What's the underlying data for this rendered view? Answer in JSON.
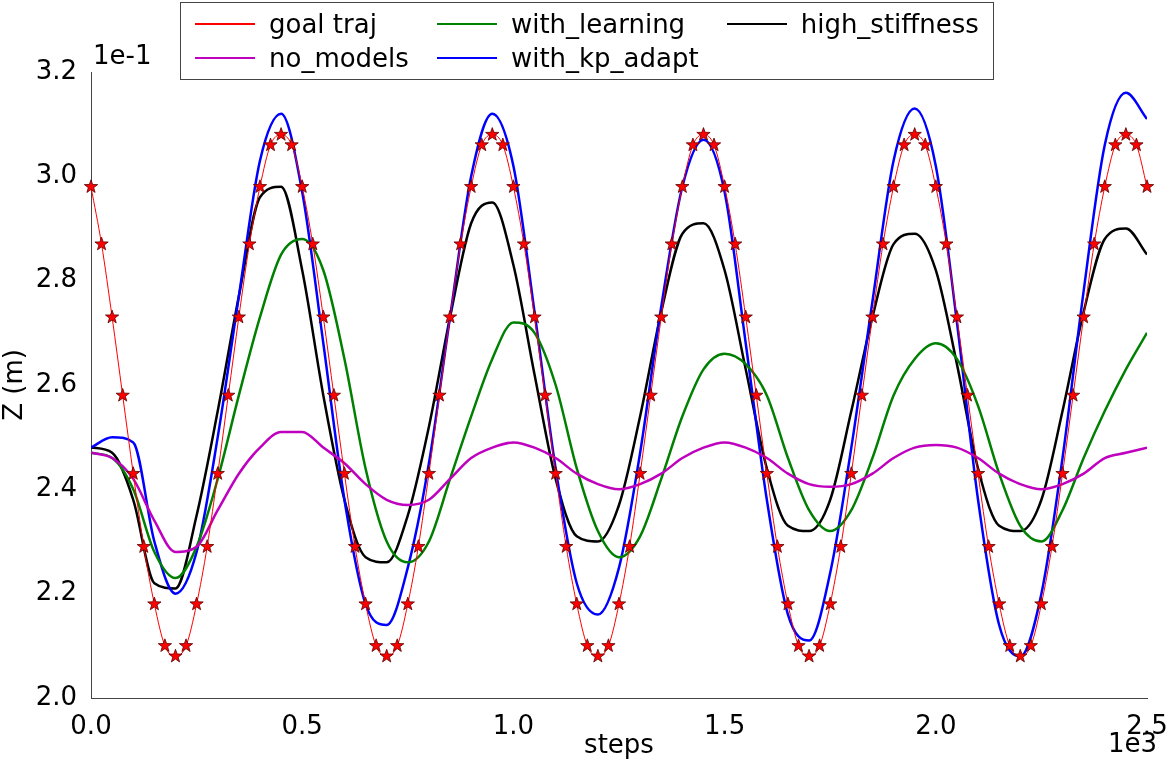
{
  "chart_data": {
    "type": "line",
    "xlabel": "steps",
    "ylabel": "Z (m)",
    "xlim": [
      0,
      2.5
    ],
    "ylim": [
      2.0,
      3.2
    ],
    "xticks": [
      {
        "value": 0,
        "label": "0.0"
      },
      {
        "value": 0.5,
        "label": "0.5"
      },
      {
        "value": 1,
        "label": "1.0"
      },
      {
        "value": 1.5,
        "label": "1.5"
      },
      {
        "value": 2,
        "label": "2.0"
      },
      {
        "value": 2.5,
        "label": "2.5"
      }
    ],
    "yticks": [
      {
        "value": 2.0,
        "label": "2.0"
      },
      {
        "value": 2.2,
        "label": "2.2"
      },
      {
        "value": 2.4,
        "label": "2.4"
      },
      {
        "value": 2.6,
        "label": "2.6"
      },
      {
        "value": 2.8,
        "label": "2.8"
      },
      {
        "value": 3.0,
        "label": "3.0"
      },
      {
        "value": 3.2,
        "label": "3.2"
      }
    ],
    "grid": false,
    "legend": "top",
    "line_style": "solid",
    "annotations": [
      "1e-1",
      "1e3"
    ],
    "x": [
      0,
      0.05,
      0.1,
      0.15,
      0.2,
      0.25,
      0.3,
      0.35,
      0.4,
      0.45,
      0.5,
      0.55,
      0.6,
      0.65,
      0.7,
      0.75,
      0.8,
      0.85,
      0.9,
      0.95,
      1.0,
      1.05,
      1.1,
      1.15,
      1.2,
      1.25,
      1.3,
      1.35,
      1.4,
      1.45,
      1.5,
      1.55,
      1.6,
      1.65,
      1.7,
      1.75,
      1.8,
      1.85,
      1.9,
      1.95,
      2.0,
      2.05,
      2.1,
      2.15,
      2.2,
      2.25,
      2.3,
      2.35,
      2.4,
      2.45,
      2.5
    ],
    "series": [
      {
        "name": "goal traj",
        "color": "#ff0000",
        "marker": "star",
        "x": [
          0,
          0.025,
          0.05,
          0.075,
          0.1,
          0.125,
          0.15,
          0.175,
          0.2,
          0.225,
          0.25,
          0.275,
          0.3,
          0.325,
          0.35,
          0.375,
          0.4,
          0.425,
          0.45,
          0.475,
          0.5,
          0.525,
          0.55,
          0.575,
          0.6,
          0.625,
          0.65,
          0.675,
          0.7,
          0.725,
          0.75,
          0.775,
          0.8,
          0.825,
          0.85,
          0.875,
          0.9,
          0.925,
          0.95,
          0.975,
          1.0,
          1.025,
          1.05,
          1.075,
          1.1,
          1.125,
          1.15,
          1.175,
          1.2,
          1.225,
          1.25,
          1.275,
          1.3,
          1.325,
          1.35,
          1.375,
          1.4,
          1.425,
          1.45,
          1.475,
          1.5,
          1.525,
          1.55,
          1.575,
          1.6,
          1.625,
          1.65,
          1.675,
          1.7,
          1.725,
          1.75,
          1.775,
          1.8,
          1.825,
          1.85,
          1.875,
          1.9,
          1.925,
          1.95,
          1.975,
          2.0,
          2.025,
          2.05,
          2.075,
          2.1,
          2.125,
          2.15,
          2.175,
          2.2,
          2.225,
          2.25,
          2.275,
          2.3,
          2.325,
          2.35,
          2.375,
          2.4,
          2.425,
          2.45,
          2.475,
          2.5
        ],
        "values": [
          2.98,
          2.87,
          2.73,
          2.58,
          2.43,
          2.29,
          2.18,
          2.1,
          2.08,
          2.1,
          2.18,
          2.29,
          2.43,
          2.58,
          2.73,
          2.87,
          2.98,
          3.06,
          3.08,
          3.06,
          2.98,
          2.87,
          2.73,
          2.58,
          2.43,
          2.29,
          2.18,
          2.1,
          2.08,
          2.1,
          2.18,
          2.29,
          2.43,
          2.58,
          2.73,
          2.87,
          2.98,
          3.06,
          3.08,
          3.06,
          2.98,
          2.87,
          2.73,
          2.58,
          2.43,
          2.29,
          2.18,
          2.1,
          2.08,
          2.1,
          2.18,
          2.29,
          2.43,
          2.58,
          2.73,
          2.87,
          2.98,
          3.06,
          3.08,
          3.06,
          2.98,
          2.87,
          2.73,
          2.58,
          2.43,
          2.29,
          2.18,
          2.1,
          2.08,
          2.1,
          2.18,
          2.29,
          2.43,
          2.58,
          2.73,
          2.87,
          2.98,
          3.06,
          3.08,
          3.06,
          2.98,
          2.87,
          2.73,
          2.58,
          2.43,
          2.29,
          2.18,
          2.1,
          2.08,
          2.1,
          2.18,
          2.29,
          2.43,
          2.58,
          2.73,
          2.87,
          2.98,
          3.06,
          3.08,
          3.06,
          2.98
        ]
      },
      {
        "name": "no_models",
        "color": "#bf00bf",
        "marker": "none",
        "values": [
          2.47,
          2.46,
          2.42,
          2.34,
          2.28,
          2.29,
          2.36,
          2.43,
          2.48,
          2.51,
          2.51,
          2.48,
          2.45,
          2.41,
          2.38,
          2.37,
          2.38,
          2.42,
          2.46,
          2.48,
          2.49,
          2.48,
          2.46,
          2.43,
          2.41,
          2.4,
          2.41,
          2.43,
          2.46,
          2.48,
          2.49,
          2.48,
          2.46,
          2.43,
          2.41,
          2.405,
          2.41,
          2.43,
          2.46,
          2.48,
          2.485,
          2.48,
          2.46,
          2.43,
          2.41,
          2.4,
          2.41,
          2.43,
          2.46,
          2.47,
          2.48
        ]
      },
      {
        "name": "with_learning",
        "color": "#008000",
        "marker": "none",
        "values": [
          2.47,
          2.46,
          2.4,
          2.28,
          2.23,
          2.29,
          2.42,
          2.58,
          2.73,
          2.85,
          2.88,
          2.82,
          2.65,
          2.44,
          2.3,
          2.26,
          2.3,
          2.42,
          2.54,
          2.65,
          2.72,
          2.7,
          2.6,
          2.44,
          2.32,
          2.27,
          2.31,
          2.42,
          2.54,
          2.63,
          2.66,
          2.64,
          2.58,
          2.46,
          2.36,
          2.32,
          2.36,
          2.46,
          2.58,
          2.65,
          2.68,
          2.65,
          2.56,
          2.43,
          2.33,
          2.3,
          2.36,
          2.46,
          2.55,
          2.63,
          2.7
        ]
      },
      {
        "name": "with_kp_adapt",
        "color": "#0000ff",
        "marker": "none",
        "values": [
          2.48,
          2.5,
          2.49,
          2.3,
          2.2,
          2.28,
          2.5,
          2.77,
          3.03,
          3.12,
          2.97,
          2.68,
          2.38,
          2.18,
          2.14,
          2.25,
          2.45,
          2.73,
          3.0,
          3.12,
          3.02,
          2.74,
          2.44,
          2.22,
          2.16,
          2.25,
          2.47,
          2.75,
          2.98,
          3.07,
          2.97,
          2.68,
          2.38,
          2.16,
          2.11,
          2.24,
          2.48,
          2.76,
          3.03,
          3.13,
          3.02,
          2.72,
          2.38,
          2.14,
          2.08,
          2.2,
          2.46,
          2.78,
          3.06,
          3.16,
          3.11
        ]
      },
      {
        "name": "high_stiffness",
        "color": "#000000",
        "marker": "none",
        "values": [
          2.48,
          2.47,
          2.38,
          2.22,
          2.21,
          2.35,
          2.55,
          2.77,
          2.96,
          2.98,
          2.82,
          2.58,
          2.38,
          2.27,
          2.26,
          2.35,
          2.52,
          2.73,
          2.91,
          2.95,
          2.83,
          2.62,
          2.42,
          2.31,
          2.3,
          2.37,
          2.54,
          2.74,
          2.89,
          2.91,
          2.82,
          2.63,
          2.44,
          2.33,
          2.32,
          2.38,
          2.55,
          2.73,
          2.87,
          2.89,
          2.82,
          2.64,
          2.44,
          2.33,
          2.32,
          2.38,
          2.55,
          2.74,
          2.88,
          2.9,
          2.85
        ]
      }
    ]
  }
}
